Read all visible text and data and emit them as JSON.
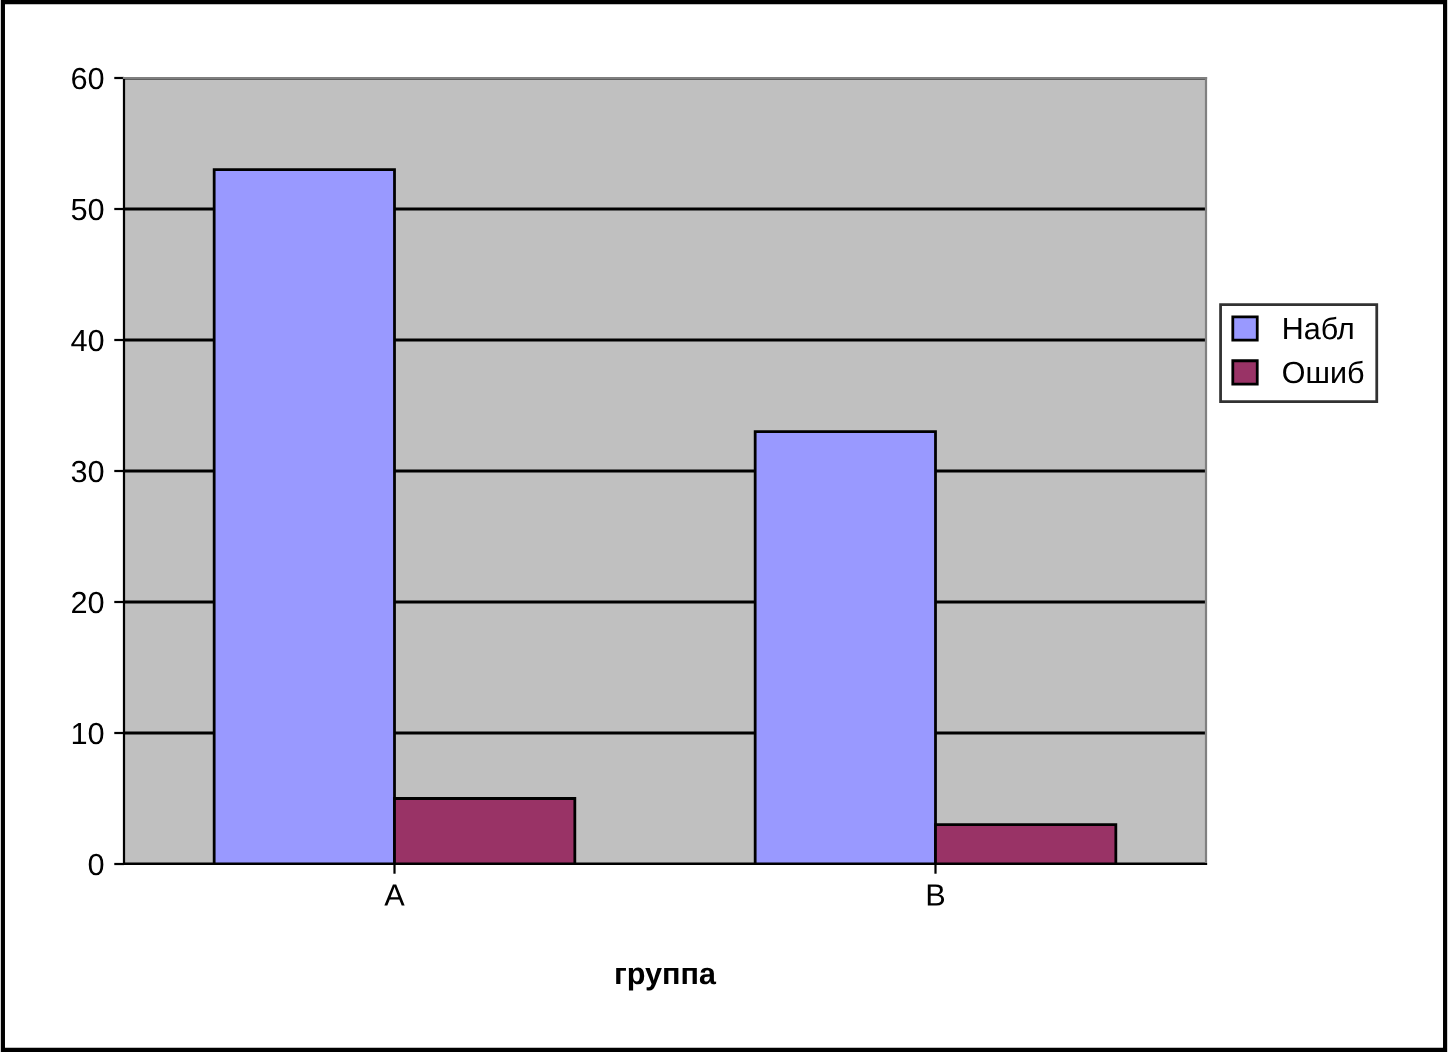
{
  "chart_data": {
    "type": "bar",
    "xlabel": "группа",
    "categories": [
      "A",
      "B"
    ],
    "series": [
      {
        "name": "Набл",
        "color": "#9999ff",
        "values": [
          53,
          33
        ]
      },
      {
        "name": "Ошиб",
        "color": "#993366",
        "values": [
          5,
          3
        ]
      }
    ],
    "ylim": [
      0,
      60
    ],
    "yticks": [
      0,
      10,
      20,
      30,
      40,
      50,
      60
    ],
    "grid": "y",
    "legend": "right"
  }
}
